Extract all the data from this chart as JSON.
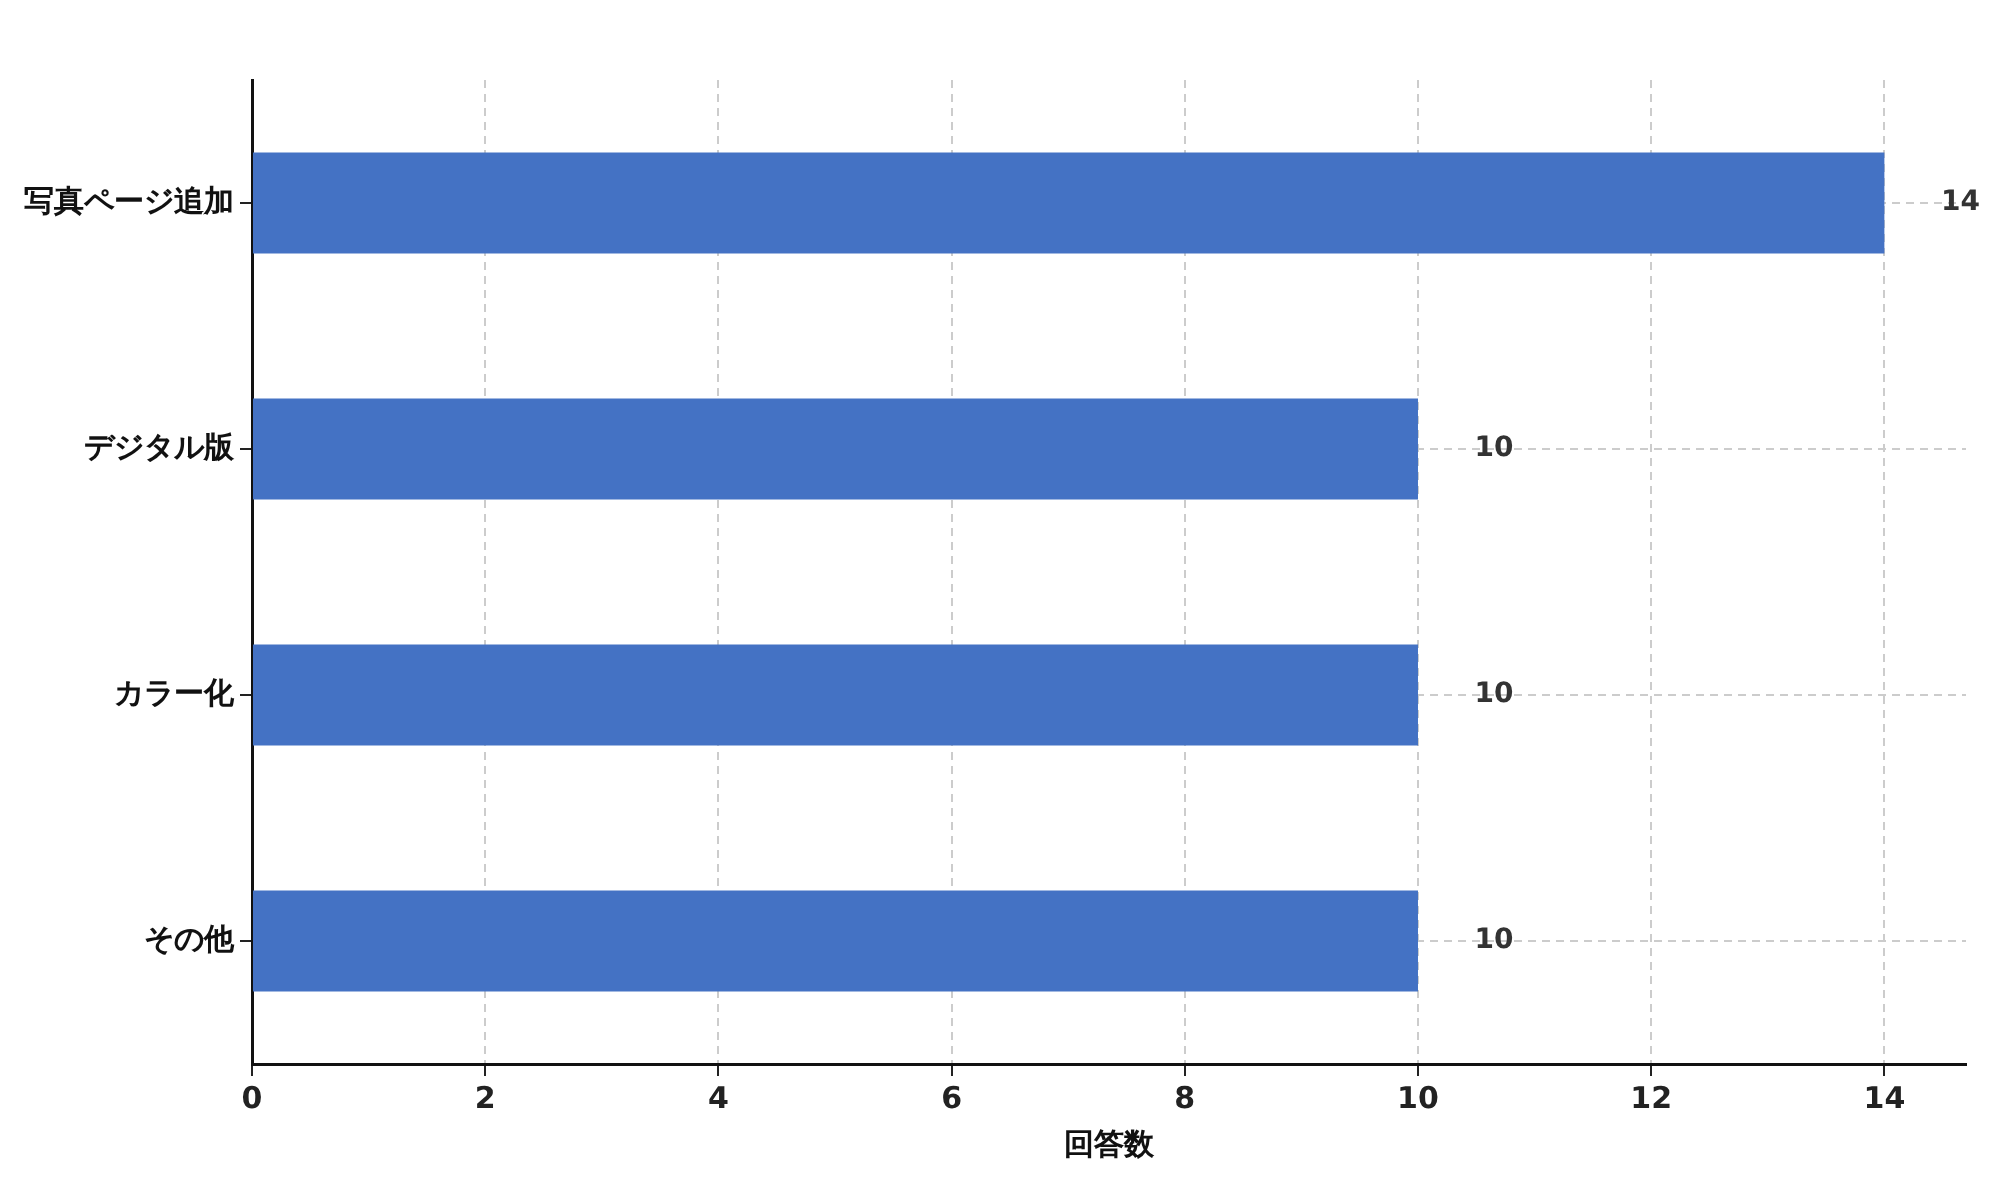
{
  "chart_data": {
    "type": "bar",
    "orientation": "horizontal",
    "xlabel": "回答数",
    "categories": [
      "写真ページ追加",
      "デジタル版",
      "カラー化",
      "その他"
    ],
    "values": [
      14,
      10,
      10,
      10
    ],
    "color": "#4472c4",
    "xlim": [
      0,
      14.7
    ],
    "xticks": [
      0,
      2,
      4,
      6,
      8,
      10,
      12,
      14
    ],
    "grid": true,
    "legend": false,
    "data_labels": true
  }
}
